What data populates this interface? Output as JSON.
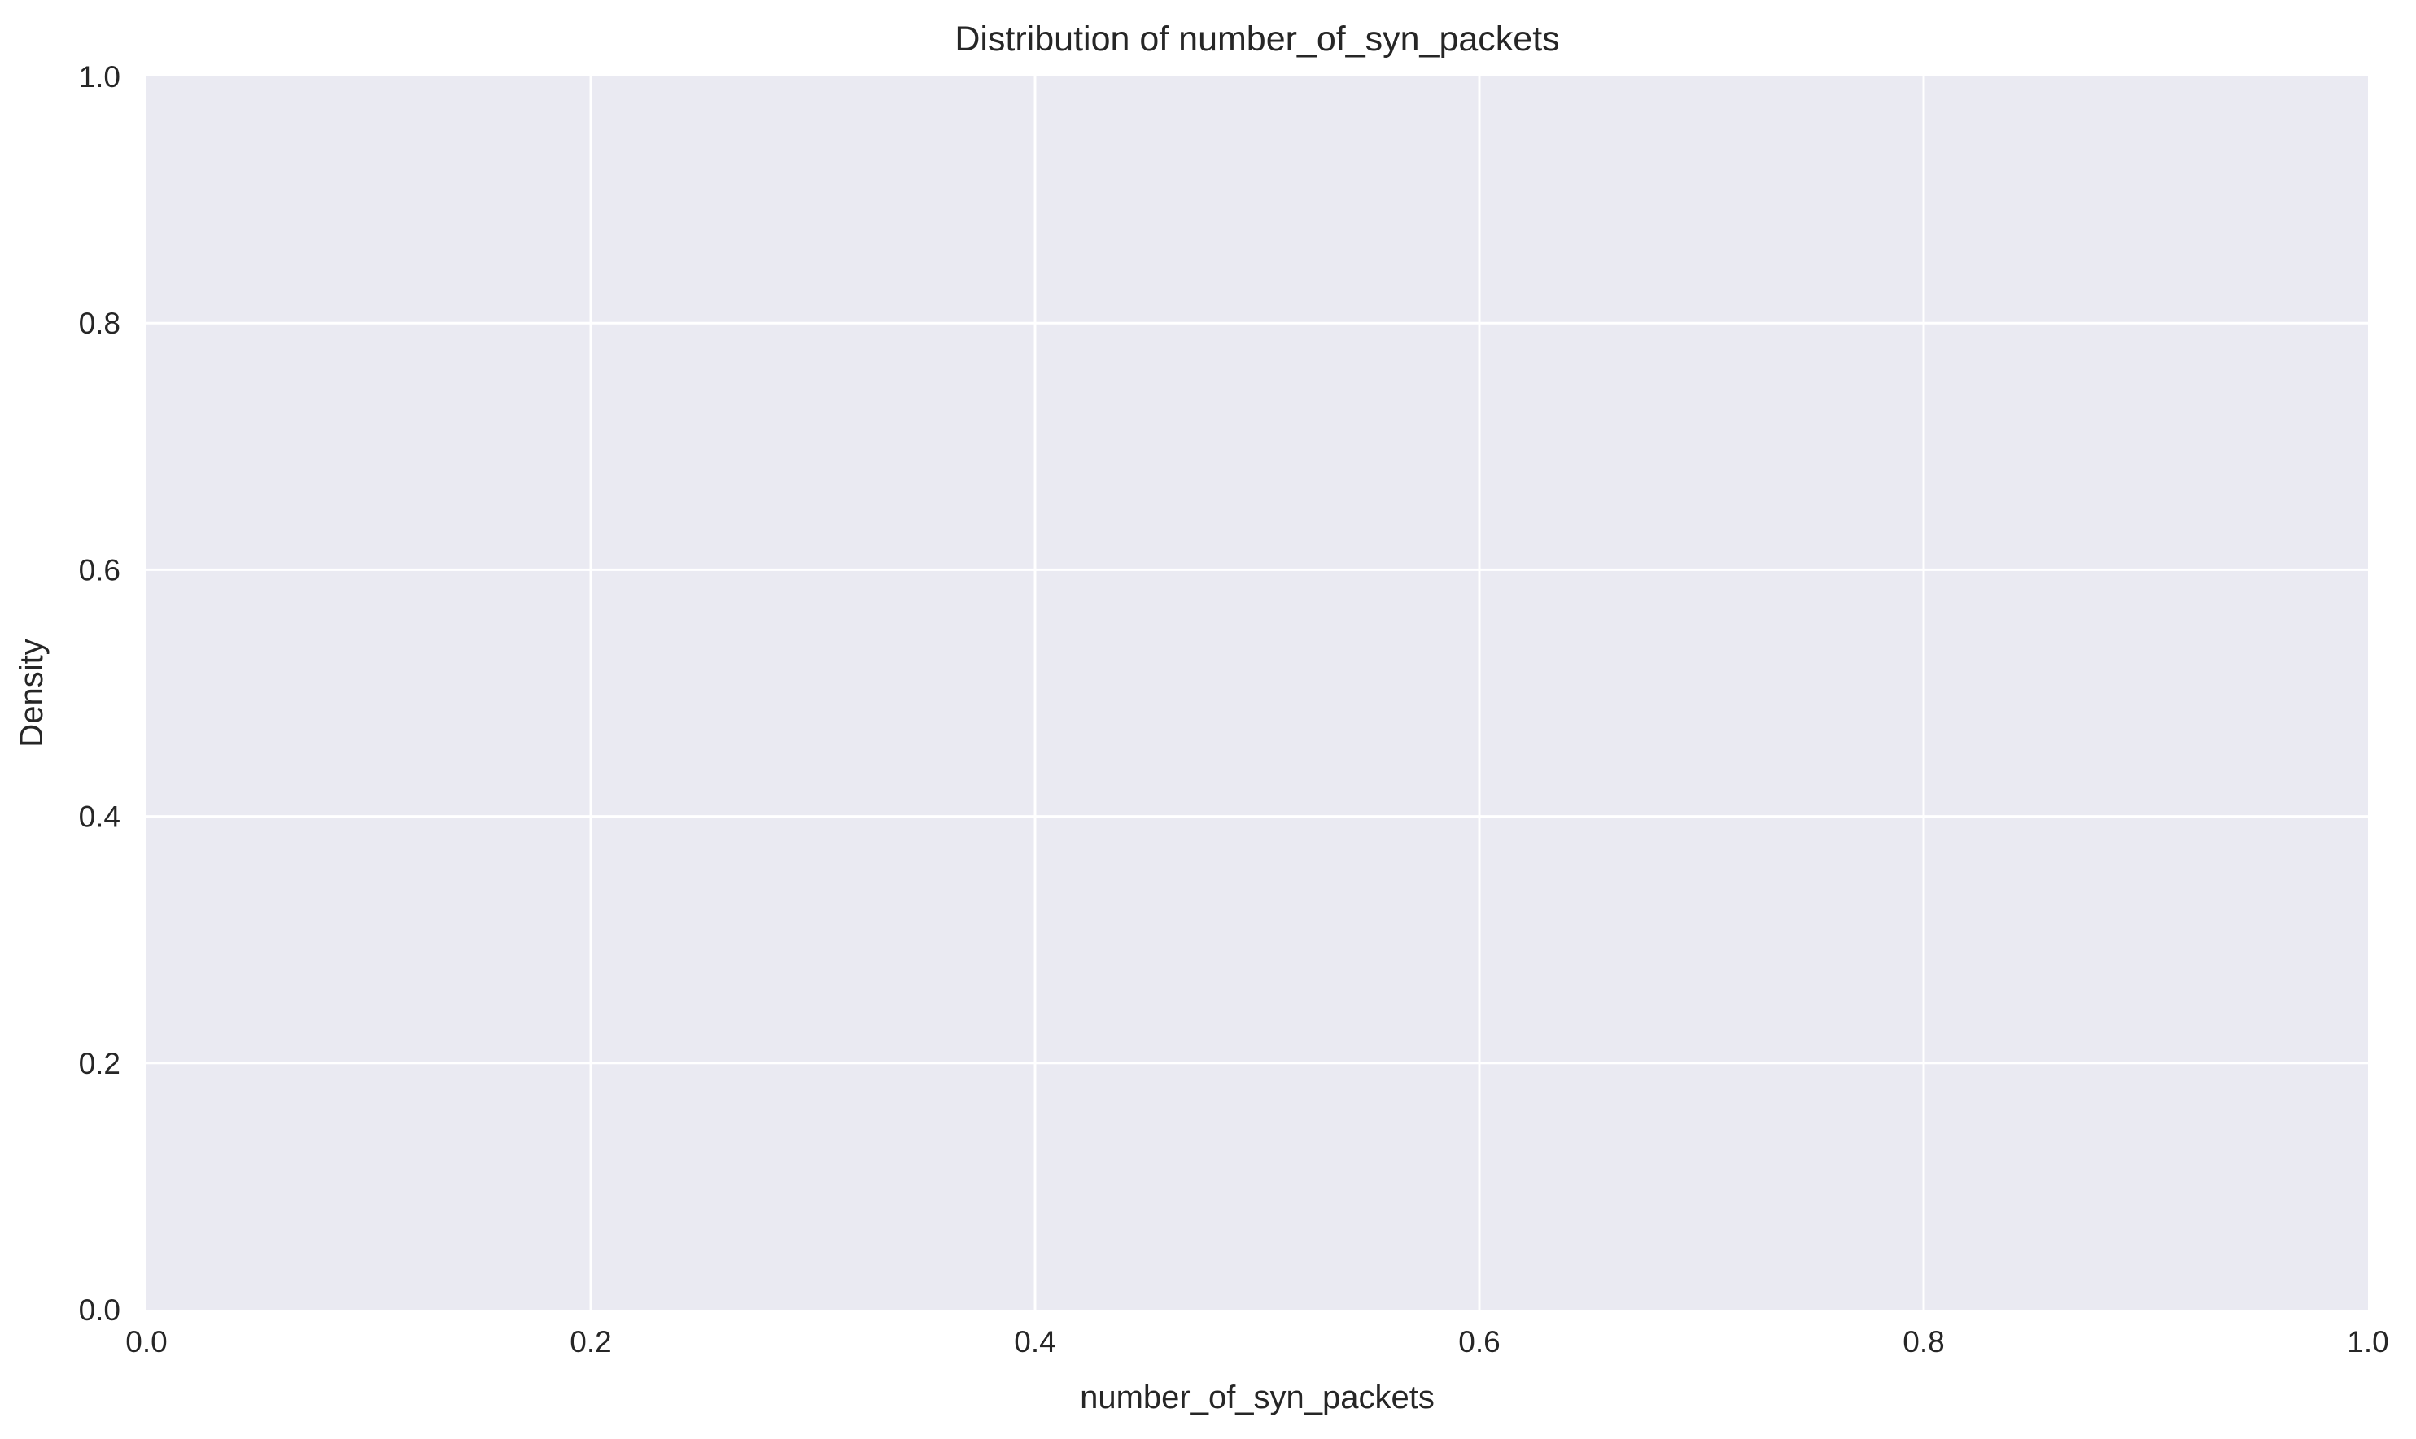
{
  "chart_data": {
    "type": "bar",
    "title": "Distribution of number_of_syn_packets",
    "xlabel": "number_of_syn_packets",
    "ylabel": "Density",
    "xlim": [
      0.0,
      1.0
    ],
    "ylim": [
      0.0,
      1.0
    ],
    "x_ticks": [
      "0.0",
      "0.2",
      "0.4",
      "0.6",
      "0.8",
      "1.0"
    ],
    "y_ticks": [
      "0.0",
      "0.2",
      "0.4",
      "0.6",
      "0.8",
      "1.0"
    ],
    "series": [],
    "grid": true,
    "legend": "none"
  },
  "colors": {
    "plot_background": "#eaeaf2",
    "grid": "#ffffff",
    "text": "#262626",
    "page_background": "#ffffff"
  }
}
